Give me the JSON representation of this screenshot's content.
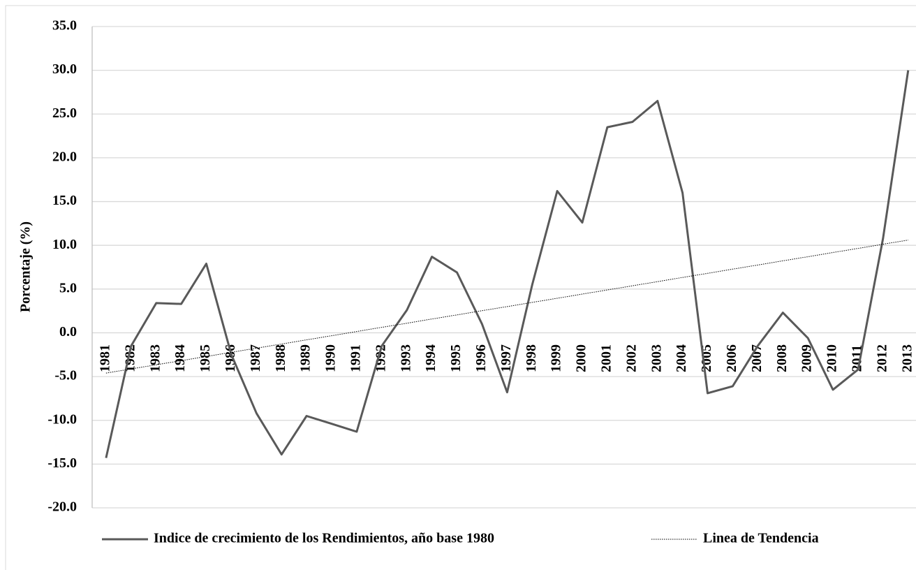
{
  "chart_data": {
    "type": "line",
    "y_label": "Porcentaje (%)",
    "categories": [
      "1981",
      "1982",
      "1983",
      "1984",
      "1985",
      "1986",
      "1987",
      "1988",
      "1989",
      "1990",
      "1991",
      "1992",
      "1993",
      "1994",
      "1995",
      "1996",
      "1997",
      "1998",
      "1999",
      "2000",
      "2001",
      "2002",
      "2003",
      "2004",
      "2005",
      "2006",
      "2007",
      "2008",
      "2009",
      "2010",
      "2011",
      "2012",
      "2013"
    ],
    "series": [
      {
        "name": "Indice de crecimiento de los Rendimientos, año base 1980",
        "color": "#595959",
        "style": "solid",
        "values": [
          -14.3,
          -1.5,
          3.4,
          3.3,
          7.9,
          -2.5,
          -9.2,
          -13.9,
          -9.5,
          -10.4,
          -11.3,
          -1.5,
          2.6,
          8.7,
          6.9,
          1.0,
          -6.8,
          5.5,
          16.2,
          12.6,
          23.5,
          24.1,
          26.5,
          16.0,
          -6.9,
          -6.1,
          -1.5,
          2.3,
          -0.6,
          -6.5,
          -4.2,
          10.8,
          30.0
        ]
      },
      {
        "name": "Linea de Tendencia",
        "color": "#000000",
        "style": "dotted",
        "values": [
          -4.6,
          -4.13,
          -3.65,
          -3.18,
          -2.7,
          -2.23,
          -1.75,
          -1.28,
          -0.8,
          -0.33,
          0.15,
          0.63,
          1.1,
          1.58,
          2.05,
          2.53,
          3.0,
          3.48,
          3.95,
          4.43,
          4.9,
          5.38,
          5.85,
          6.33,
          6.8,
          7.28,
          7.75,
          8.23,
          8.7,
          9.18,
          9.65,
          10.13,
          10.6
        ]
      }
    ],
    "ylim": [
      -20,
      35
    ],
    "yticks": [
      {
        "value": -20,
        "label": "-20.0"
      },
      {
        "value": -15,
        "label": "-15.0"
      },
      {
        "value": -10,
        "label": "-10.0"
      },
      {
        "value": -5,
        "label": "-5.0"
      },
      {
        "value": 0,
        "label": "0.0"
      },
      {
        "value": 5,
        "label": "5.0"
      },
      {
        "value": 10,
        "label": "10.0"
      },
      {
        "value": 15,
        "label": "15.0"
      },
      {
        "value": 20,
        "label": "20.0"
      },
      {
        "value": 25,
        "label": "25.0"
      },
      {
        "value": 30,
        "label": "30.0"
      },
      {
        "value": 35,
        "label": "35.0"
      }
    ],
    "grid": true,
    "legend": "bottom"
  }
}
